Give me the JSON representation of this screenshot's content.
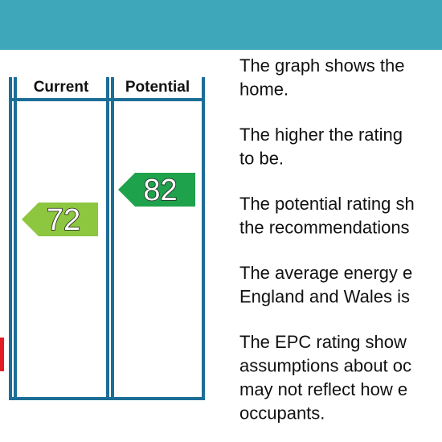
{
  "table": {
    "columns": [
      "Current",
      "Potential"
    ],
    "ratings": [
      72,
      82
    ]
  },
  "paragraphs": [
    [
      "The graph shows the",
      "home."
    ],
    [
      "The higher the rating",
      "to be."
    ],
    [
      "The potential rating sh",
      "the recommendations"
    ],
    [
      "The average energy e",
      "England and Wales is"
    ],
    [
      "The EPC rating show",
      "assumptions about oc",
      "may not reflect how e",
      "occupants."
    ]
  ]
}
